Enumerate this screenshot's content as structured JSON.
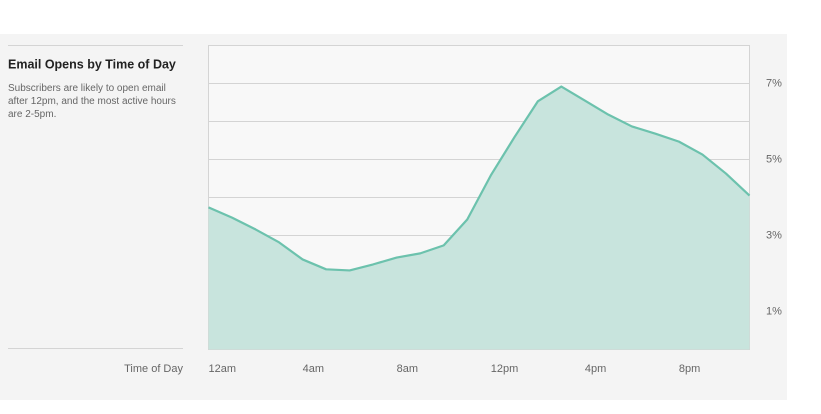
{
  "chart_data": {
    "type": "area",
    "title": "Email Opens by Time of Day",
    "subtitle": "Subscribers are likely to open email after 12pm, and the most active hours are 2-5pm.",
    "x_label": "Time of Day",
    "categories": [
      "12am",
      null,
      null,
      null,
      "4am",
      null,
      null,
      null,
      "8am",
      null,
      null,
      null,
      "12pm",
      null,
      null,
      null,
      "4pm",
      null,
      null,
      null,
      "8pm",
      null,
      null,
      null
    ],
    "values": [
      3.74,
      3.47,
      3.16,
      2.82,
      2.37,
      2.11,
      2.08,
      2.24,
      2.42,
      2.53,
      2.74,
      3.42,
      4.58,
      5.58,
      6.53,
      6.92,
      6.55,
      6.18,
      5.87,
      5.68,
      5.47,
      5.13,
      4.63,
      4.05
    ],
    "color": "#6cc2ad",
    "fill": "#c8e4dd",
    "ylim": [
      0,
      8
    ],
    "yticks": [
      {
        "value": 1,
        "label": "1%"
      },
      {
        "value": 3,
        "label": "3%"
      },
      {
        "value": 5,
        "label": "5%"
      },
      {
        "value": 7,
        "label": "7%"
      }
    ],
    "ygrid": [
      1,
      2,
      3,
      4,
      5,
      6,
      7
    ]
  }
}
